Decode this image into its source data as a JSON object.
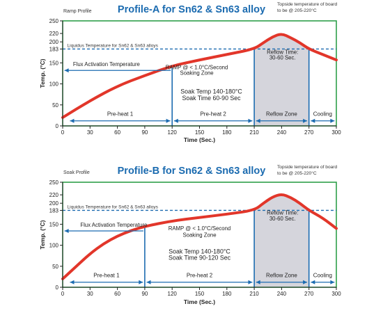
{
  "chart_data": [
    {
      "type": "line",
      "title": "Profile-A for Sn62 & Sn63 alloy",
      "corner_label": "Ramp Profile",
      "note_lines": [
        "Topside temperature of board",
        "to be @ 205-220°C"
      ],
      "xlabel": "Time (Sec.)",
      "ylabel": "Temp. (°C)",
      "xlim": [
        0,
        300
      ],
      "ylim": [
        0,
        250
      ],
      "x_ticks": [
        0,
        30,
        60,
        90,
        120,
        150,
        180,
        210,
        240,
        270,
        300
      ],
      "y_ticks": [
        0,
        50,
        100,
        150,
        183,
        200,
        220,
        250
      ],
      "grid": false,
      "liquidus": {
        "value": 183,
        "label": "Liquidus Temperature for Sn62 & Sn63 alloys"
      },
      "zone_dividers": [
        120,
        210,
        270
      ],
      "series": [
        {
          "x": [
            0,
            30,
            60,
            90,
            120,
            150,
            180,
            210,
            220,
            230,
            240,
            250,
            260,
            270,
            285,
            300
          ],
          "y": [
            20,
            60,
            95,
            120,
            143,
            157,
            170,
            183,
            198,
            212,
            220,
            210,
            198,
            183,
            170,
            157
          ]
        }
      ],
      "annotations": [
        {
          "text": "Flux Activation Temperature",
          "x": 48,
          "y": 142
        },
        {
          "text": "RAMP @ < 1.0°C/Second",
          "x": 147,
          "y": 135
        },
        {
          "text": "Soaking Zone",
          "x": 147,
          "y": 122
        },
        {
          "text": "Soak Temp 140-180°C",
          "x": 163,
          "y": 77
        },
        {
          "text": "Soak Time 60-90 Sec",
          "x": 163,
          "y": 61
        },
        {
          "text": "Reflow Time:",
          "x": 241,
          "y": 171
        },
        {
          "text": "30-60 Sec.",
          "x": 241,
          "y": 158
        }
      ],
      "zones": [
        {
          "label": "Pre-heat 1",
          "x0": 8,
          "x1": 118
        },
        {
          "label": "Pre-heat 2",
          "x0": 122,
          "x1": 208
        },
        {
          "label": "Reflow Zone",
          "x0": 212,
          "x1": 268
        },
        {
          "label": "Cooling",
          "x0": 272,
          "x1": 298
        }
      ]
    },
    {
      "type": "line",
      "title": "Profile-B for Sn62 & Sn63 alloy",
      "corner_label": "Soak Profile",
      "note_lines": [
        "Topside temperature of board",
        "to be @ 205-220°C"
      ],
      "xlabel": "Time (Sec.)",
      "ylabel": "Temp. (°C)",
      "xlim": [
        0,
        300
      ],
      "ylim": [
        0,
        250
      ],
      "x_ticks": [
        0,
        30,
        60,
        90,
        120,
        150,
        180,
        210,
        240,
        270,
        300
      ],
      "y_ticks": [
        0,
        50,
        100,
        150,
        183,
        200,
        220,
        250
      ],
      "grid": false,
      "liquidus": {
        "value": 183,
        "label": "Liquidus Temperature for Sn62 & Sn63 alloys"
      },
      "zone_dividers": [
        90,
        210,
        270
      ],
      "series": [
        {
          "x": [
            0,
            15,
            30,
            45,
            60,
            75,
            90,
            120,
            150,
            180,
            210,
            220,
            230,
            240,
            250,
            260,
            270,
            285,
            300
          ],
          "y": [
            20,
            50,
            80,
            104,
            122,
            135,
            145,
            158,
            166,
            174,
            183,
            200,
            215,
            222,
            214,
            200,
            183,
            165,
            140
          ]
        }
      ],
      "annotations": [
        {
          "text": "Flux Activation Temperature",
          "x": 56,
          "y": 144
        },
        {
          "text": "RAMP @ < 1.0°C/Second",
          "x": 150,
          "y": 136
        },
        {
          "text": "Soaking Zone",
          "x": 150,
          "y": 120
        },
        {
          "text": "Soak Temp 140-180°C",
          "x": 150,
          "y": 80
        },
        {
          "text": "Soak Time 90-120 Sec",
          "x": 150,
          "y": 65
        },
        {
          "text": "Reflow Time:",
          "x": 241,
          "y": 173
        },
        {
          "text": "30-60 Sec.",
          "x": 241,
          "y": 159
        }
      ],
      "zones": [
        {
          "label": "Pre-heat 1",
          "x0": 8,
          "x1": 88
        },
        {
          "label": "Pre-heat 2",
          "x0": 92,
          "x1": 208
        },
        {
          "label": "Reflow Zone",
          "x0": 212,
          "x1": 268
        },
        {
          "label": "Cooling",
          "x0": 272,
          "x1": 298
        }
      ]
    }
  ],
  "colors": {
    "frame": "#2e9f4a",
    "title": "#1b6bb0",
    "curve": "#e2362a",
    "guide": "#1b6bb0",
    "area": "#d5d5dc",
    "axis": "#222222"
  }
}
